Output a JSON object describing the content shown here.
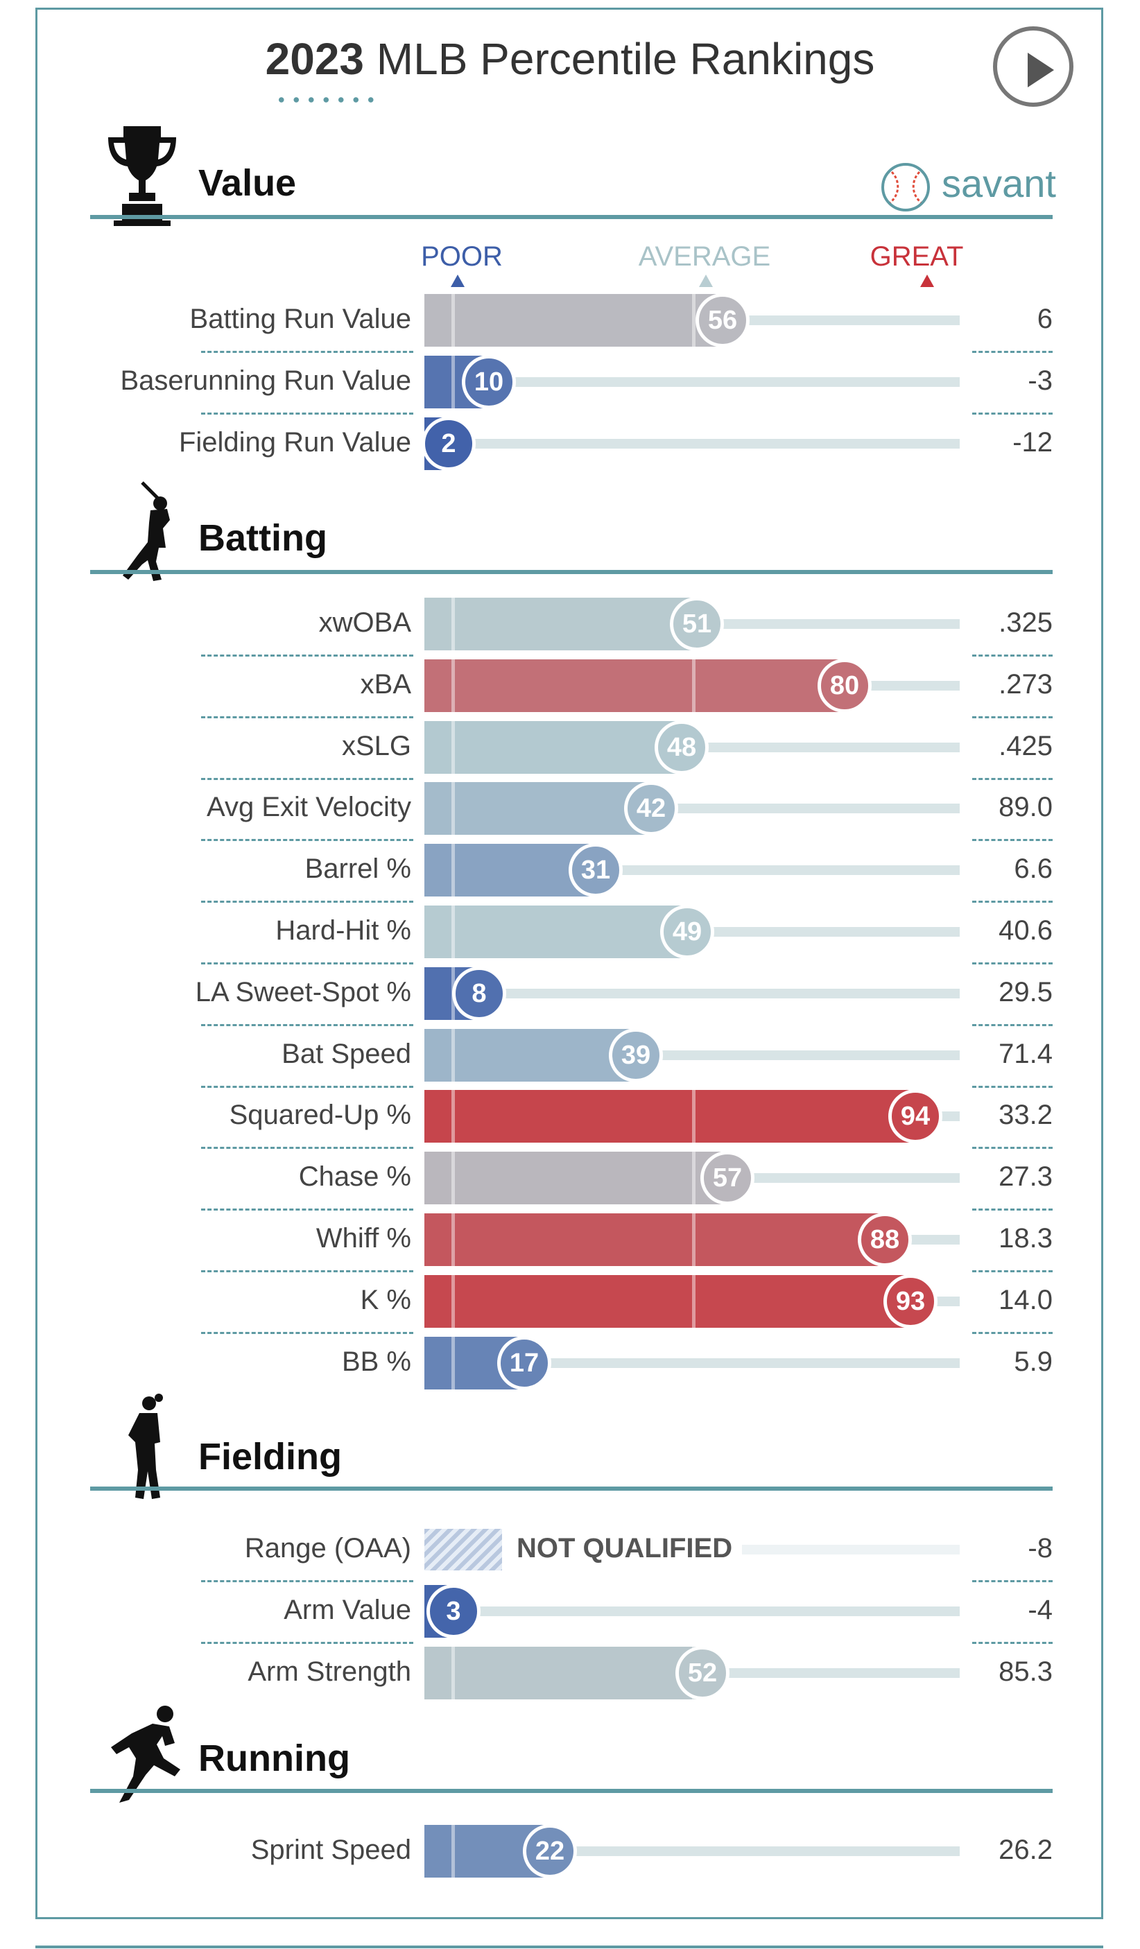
{
  "title": {
    "year": "2023",
    "rest": "MLB Percentile Rankings"
  },
  "brand": {
    "name": "savant"
  },
  "scale": {
    "poor": "POOR",
    "average": "AVERAGE",
    "great": "GREAT"
  },
  "colors": {
    "poor": "#3d5ea8",
    "average": "#b8cdd2",
    "great": "#c8323a",
    "frame": "#5e9aa3",
    "not_qualified": "#b9c8df"
  },
  "icons": [
    "play-icon",
    "trophy-icon",
    "baseball-icon",
    "batter-icon",
    "fielder-icon",
    "runner-icon"
  ],
  "sections": [
    {
      "title": "Value",
      "metrics": [
        {
          "label": "Batting Run Value",
          "percentile": 56,
          "value": "6"
        },
        {
          "label": "Baserunning Run Value",
          "percentile": 10,
          "value": "-3"
        },
        {
          "label": "Fielding Run Value",
          "percentile": 2,
          "value": "-12"
        }
      ]
    },
    {
      "title": "Batting",
      "metrics": [
        {
          "label": "xwOBA",
          "percentile": 51,
          "value": ".325"
        },
        {
          "label": "xBA",
          "percentile": 80,
          "value": ".273"
        },
        {
          "label": "xSLG",
          "percentile": 48,
          "value": ".425"
        },
        {
          "label": "Avg Exit Velocity",
          "percentile": 42,
          "value": "89.0"
        },
        {
          "label": "Barrel %",
          "percentile": 31,
          "value": "6.6"
        },
        {
          "label": "Hard-Hit %",
          "percentile": 49,
          "value": "40.6"
        },
        {
          "label": "LA Sweet-Spot %",
          "percentile": 8,
          "value": "29.5"
        },
        {
          "label": "Bat Speed",
          "percentile": 39,
          "value": "71.4"
        },
        {
          "label": "Squared-Up %",
          "percentile": 94,
          "value": "33.2"
        },
        {
          "label": "Chase %",
          "percentile": 57,
          "value": "27.3"
        },
        {
          "label": "Whiff %",
          "percentile": 88,
          "value": "18.3"
        },
        {
          "label": "K %",
          "percentile": 93,
          "value": "14.0"
        },
        {
          "label": "BB %",
          "percentile": 17,
          "value": "5.9"
        }
      ]
    },
    {
      "title": "Fielding",
      "metrics": [
        {
          "label": "Range (OAA)",
          "percentile": null,
          "qualified": false,
          "status": "NOT QUALIFIED",
          "value": "-8"
        },
        {
          "label": "Arm Value",
          "percentile": 3,
          "value": "-4"
        },
        {
          "label": "Arm Strength",
          "percentile": 52,
          "value": "85.3"
        }
      ]
    },
    {
      "title": "Running",
      "metrics": [
        {
          "label": "Sprint Speed",
          "percentile": 22,
          "value": "26.2"
        }
      ]
    }
  ],
  "chart_data": {
    "type": "bar",
    "orientation": "horizontal",
    "xlim": [
      0,
      100
    ],
    "categories": [
      "Batting Run Value",
      "Baserunning Run Value",
      "Fielding Run Value",
      "xwOBA",
      "xBA",
      "xSLG",
      "Avg Exit Velocity",
      "Barrel %",
      "Hard-Hit %",
      "LA Sweet-Spot %",
      "Bat Speed",
      "Squared-Up %",
      "Chase %",
      "Whiff %",
      "K %",
      "BB %",
      "Range (OAA)",
      "Arm Value",
      "Arm Strength",
      "Sprint Speed"
    ],
    "values": [
      56,
      10,
      2,
      51,
      80,
      48,
      42,
      31,
      49,
      8,
      39,
      94,
      57,
      88,
      93,
      17,
      null,
      3,
      52,
      22
    ]
  }
}
